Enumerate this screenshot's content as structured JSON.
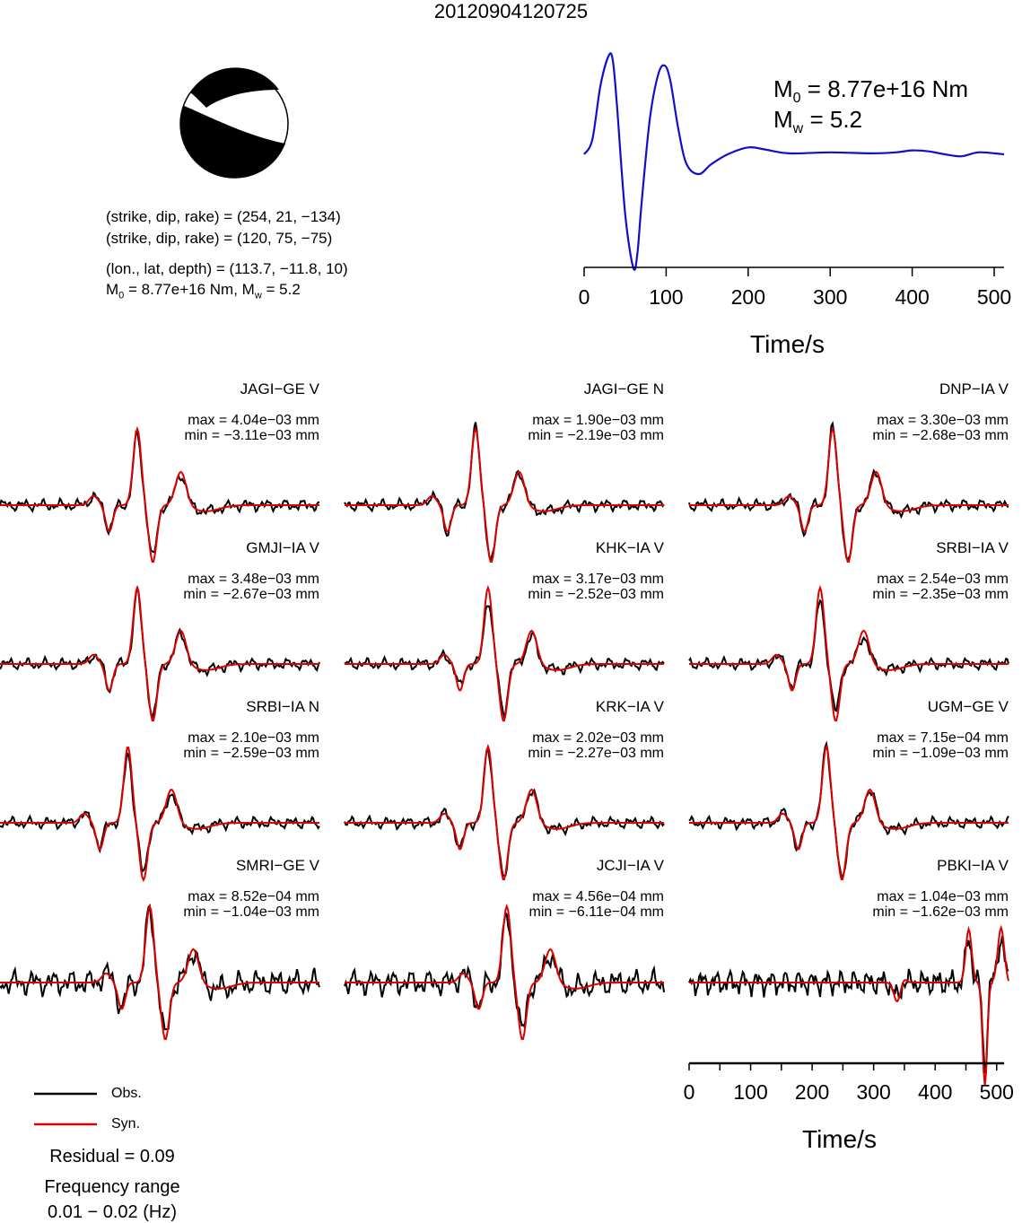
{
  "title": "20120904120725",
  "params": {
    "plane1": "(strike, dip, rake) = (254, 21, −134)",
    "plane2": "(strike, dip, rake) = (120, 75, −75)",
    "location": "(lon., lat, depth) = (113.7, −11.8, 10)",
    "moment_prefix": "M",
    "moment_sub": "0",
    "moment_rest": " = 8.77e+16 Nm, M",
    "mw_sub": "w",
    "mw_rest": " = 5.2"
  },
  "source_time_function": {
    "m0_base": "M",
    "m0_sub": "0",
    "m0_text": " = 8.77e+16 Nm",
    "mw_base": "M",
    "mw_sub": "w",
    "mw_text": " = 5.2",
    "color": "#0000cc"
  },
  "colors": {
    "observed": "#000000",
    "synthetic": "#dd0000",
    "stf": "#1010cc"
  },
  "legend": {
    "obs": "Obs.",
    "syn": "Syn."
  },
  "footer": {
    "residual": "Residual = 0.09",
    "freq_title": "Frequency range",
    "freq_value": "0.01 − 0.02 (Hz)"
  },
  "chart_data": [
    {
      "type": "line",
      "name": "source-time-function",
      "xlabel": "Time/s",
      "x_ticks": [
        "0",
        "100",
        "200",
        "300",
        "400",
        "500"
      ],
      "xlim": [
        0,
        512
      ],
      "x": [
        0,
        10,
        20,
        30,
        35,
        40,
        50,
        60,
        65,
        70,
        80,
        90,
        98,
        105,
        115,
        125,
        140,
        155,
        175,
        200,
        220,
        250,
        300,
        350,
        380,
        400,
        420,
        440,
        460,
        480,
        500,
        512
      ],
      "y": [
        0.0,
        0.15,
        0.7,
        1.0,
        0.95,
        0.5,
        -0.6,
        -1.15,
        -1.0,
        -0.5,
        0.35,
        0.8,
        0.9,
        0.75,
        0.25,
        -0.1,
        -0.2,
        -0.1,
        0.0,
        0.07,
        0.05,
        0.01,
        0.02,
        0.01,
        0.02,
        0.04,
        0.03,
        0.0,
        -0.02,
        0.02,
        0.01,
        0.0
      ]
    },
    {
      "type": "line",
      "name": "waveform-fits",
      "xlabel": "Time/s",
      "x_ticks": [
        "0",
        "100",
        "200",
        "300",
        "400",
        "500"
      ],
      "xlim": [
        0,
        512
      ],
      "series": [
        {
          "station": "JAGI−GE V",
          "max": "max = 4.04e−03 mm",
          "min": "min = −3.11e−03 mm"
        },
        {
          "station": "JAGI−GE N",
          "max": "max = 1.90e−03 mm",
          "min": "min = −2.19e−03 mm"
        },
        {
          "station": "DNP−IA V",
          "max": "max = 3.30e−03 mm",
          "min": "min = −2.68e−03 mm"
        },
        {
          "station": "GMJI−IA V",
          "max": "max = 3.48e−03 mm",
          "min": "min = −2.67e−03 mm"
        },
        {
          "station": "KHK−IA V",
          "max": "max = 3.17e−03 mm",
          "min": "min = −2.52e−03 mm"
        },
        {
          "station": "SRBI−IA V",
          "max": "max = 2.54e−03 mm",
          "min": "min = −2.35e−03 mm"
        },
        {
          "station": "SRBI−IA N",
          "max": "max = 2.10e−03 mm",
          "min": "min = −2.59e−03 mm"
        },
        {
          "station": "KRK−IA V",
          "max": "max = 2.02e−03 mm",
          "min": "min = −2.27e−03 mm"
        },
        {
          "station": "UGM−GE V",
          "max": "max = 7.15e−04 mm",
          "min": "min = −1.09e−03 mm"
        },
        {
          "station": "SMRI−GE V",
          "max": "max = 8.52e−04 mm",
          "min": "min = −1.04e−03 mm"
        },
        {
          "station": "JCJI−IA V",
          "max": "max = 4.56e−04 mm",
          "min": "min = −6.11e−04 mm"
        },
        {
          "station": "PBKI−IA V",
          "max": "max = 1.04e−03 mm",
          "min": "min = −1.62e−03 mm"
        }
      ]
    }
  ]
}
